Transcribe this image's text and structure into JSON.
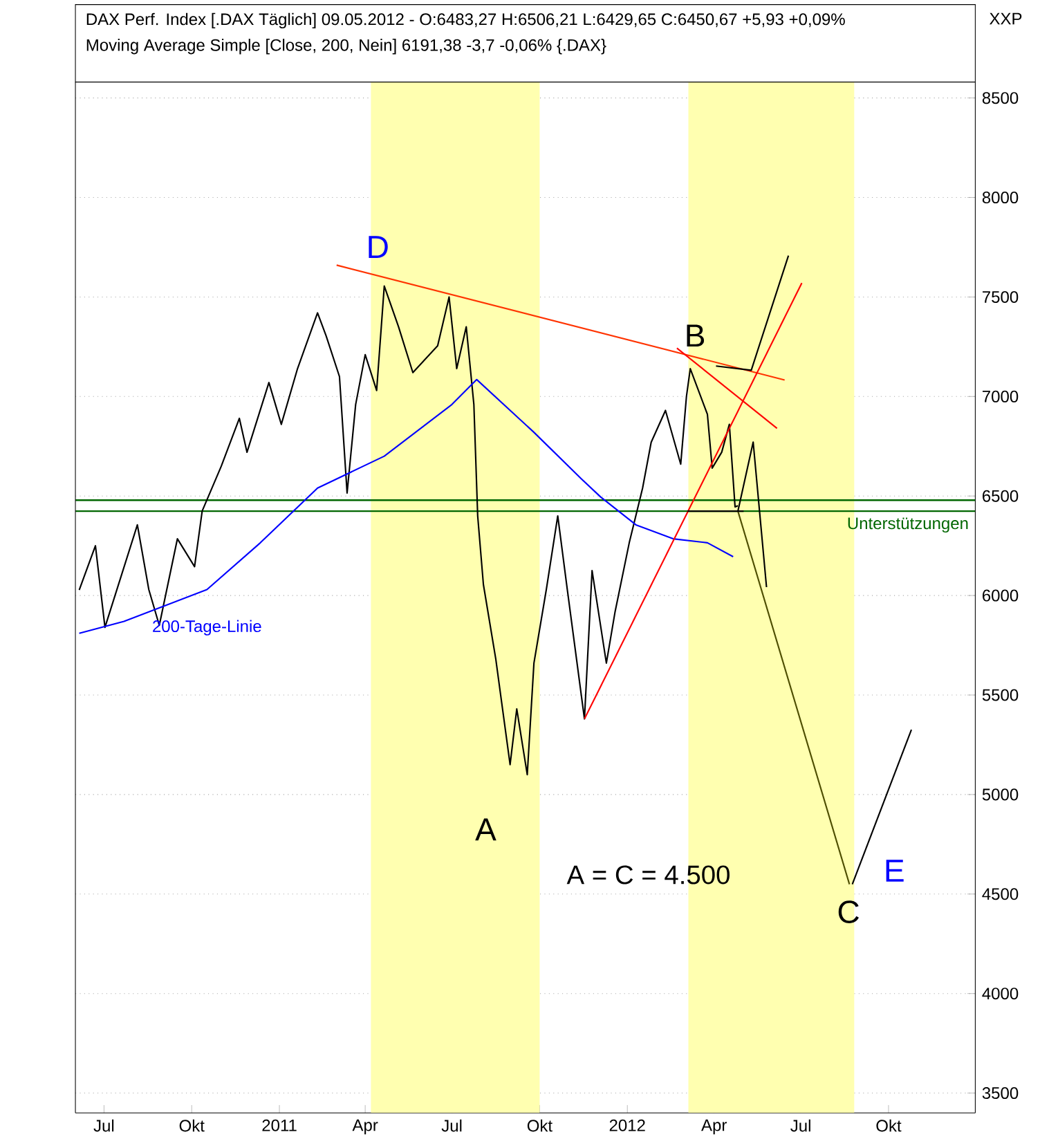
{
  "chart_data": {
    "type": "line",
    "title": "DAX Perf. Index [.DAX  Täglich] 09.05.2012 - O:6483,27 H:6506,21 L:6429,65 C:6450,67 +5,93 +0,09%",
    "subtitle": "Moving Average Simple [Close, 200, Nein] 6191,38 -3,7 -0,06% {.DAX}",
    "xlim": [
      "2010-06-01",
      "2012-12-31"
    ],
    "ylim": [
      3400,
      8580
    ],
    "xticks": [
      {
        "value": "2010-07-01",
        "label": "Jul"
      },
      {
        "value": "2010-10-01",
        "label": "Okt"
      },
      {
        "value": "2011-01-01",
        "label": "2011"
      },
      {
        "value": "2011-04-01",
        "label": "Apr"
      },
      {
        "value": "2011-07-01",
        "label": "Jul"
      },
      {
        "value": "2011-10-01",
        "label": "Okt"
      },
      {
        "value": "2012-01-01",
        "label": "2012"
      },
      {
        "value": "2012-04-01",
        "label": "Apr"
      },
      {
        "value": "2012-07-01",
        "label": "Jul"
      },
      {
        "value": "2012-10-01",
        "label": "Okt"
      }
    ],
    "yticks": [
      3500,
      4000,
      4500,
      5000,
      5500,
      6000,
      6500,
      7000,
      7500,
      8000,
      8500
    ],
    "grid": "y",
    "series": [
      {
        "color": "#000000",
        "x": [
          "2010-06-05",
          "2010-06-22",
          "2010-07-02",
          "2010-08-05",
          "2010-08-17",
          "2010-08-28",
          "2010-09-16",
          "2010-10-04",
          "2010-10-12",
          "2010-11-01",
          "2010-11-20",
          "2010-11-28",
          "2010-12-21",
          "2011-01-03",
          "2011-01-20",
          "2011-02-10",
          "2011-02-19",
          "2011-03-05",
          "2011-03-13",
          "2011-03-22",
          "2011-04-01",
          "2011-04-13",
          "2011-04-21",
          "2011-05-06",
          "2011-05-21",
          "2011-06-16",
          "2011-06-28",
          "2011-07-06",
          "2011-07-16",
          "2011-07-24",
          "2011-07-28",
          "2011-08-03",
          "2011-08-16",
          "2011-08-31",
          "2011-09-07",
          "2011-09-18",
          "2011-09-25",
          "2011-10-08",
          "2011-10-20",
          "2011-10-30",
          "2011-11-17",
          "2011-11-25",
          "2011-12-10",
          "2011-12-19",
          "2012-01-03",
          "2012-01-17",
          "2012-01-26",
          "2012-02-10",
          "2012-02-26",
          "2012-03-03",
          "2012-03-07",
          "2012-03-25",
          "2012-03-30",
          "2012-04-09",
          "2012-04-17",
          "2012-04-23",
          "2012-04-26"
        ],
        "values": [
          6028,
          6250,
          5840,
          6355,
          6030,
          5850,
          6285,
          6145,
          6425,
          6650,
          6890,
          6720,
          7070,
          6860,
          7140,
          7420,
          7305,
          7100,
          6515,
          6960,
          7210,
          7030,
          7555,
          7350,
          7120,
          7255,
          7500,
          7140,
          7350,
          6960,
          6400,
          6055,
          5680,
          5150,
          5430,
          5100,
          5660,
          6030,
          6400,
          6030,
          5380,
          6125,
          5660,
          5915,
          6265,
          6540,
          6770,
          6930,
          6660,
          7000,
          7140,
          6910,
          6640,
          6720,
          6860,
          6445,
          6451
        ]
      },
      {
        "name": "200-Tage-Linie",
        "color": "#0000ff",
        "x": [
          "2010-06-05",
          "2010-07-22",
          "2010-10-17",
          "2010-12-12",
          "2011-02-10",
          "2011-04-21",
          "2011-07-01",
          "2011-07-27",
          "2011-09-25",
          "2011-11-14",
          "2011-12-04",
          "2012-01-10",
          "2012-02-18",
          "2012-03-25",
          "2012-04-21"
        ],
        "values": [
          5810,
          5870,
          6030,
          6265,
          6540,
          6700,
          6960,
          7085,
          6820,
          6585,
          6495,
          6355,
          6285,
          6265,
          6195
        ]
      },
      {
        "color": "#ff3300",
        "x": [
          "2011-03-02",
          "2012-06-14"
        ],
        "values": [
          7660,
          7083
        ]
      },
      {
        "color": "#ff0000",
        "x": [
          "2011-11-17",
          "2012-07-02"
        ],
        "values": [
          5380,
          7570
        ]
      },
      {
        "color": "#ff0000",
        "x": [
          "2012-02-22",
          "2012-06-06"
        ],
        "values": [
          7243,
          6840
        ]
      },
      {
        "color": "#4d4d00",
        "x": [
          "2012-04-26",
          "2012-08-21"
        ],
        "values": [
          6424,
          4549
        ]
      },
      {
        "color": "#000000",
        "x": [
          "2012-04-26",
          "2012-05-12",
          "2012-05-26"
        ],
        "values": [
          6424,
          6771,
          6042
        ]
      },
      {
        "color": "#000000",
        "x": [
          "2012-04-03",
          "2012-05-10",
          "2012-06-18"
        ],
        "values": [
          7153,
          7132,
          7708
        ]
      },
      {
        "color": "#000000",
        "x": [
          "2012-08-24",
          "2012-10-25"
        ],
        "values": [
          4549,
          5326
        ]
      },
      {
        "color": "#000000",
        "x": [
          "2012-03-04",
          "2012-05-02"
        ],
        "values": [
          6424,
          6424
        ]
      }
    ],
    "ref_lines": [
      {
        "axis": "y",
        "value": 6479,
        "color": "#006600"
      },
      {
        "axis": "y",
        "value": 6424,
        "color": "#006600",
        "label": "Unterstützungen"
      }
    ],
    "bands": [
      {
        "axis": "x",
        "from": "2011-04-07",
        "to": "2011-10-01",
        "color": "#ffffb0"
      },
      {
        "axis": "x",
        "from": "2012-03-05",
        "to": "2012-08-26",
        "color": "#ffffb0"
      }
    ],
    "annotations": [
      "D",
      "A",
      {
        "text": "B",
        "x": "2012-03-12",
        "y": 7306
      },
      {
        "text": "C",
        "x": "2012-08-20",
        "y": 4410
      },
      "E",
      "A = C = 4.500",
      "XXP"
    ]
  }
}
